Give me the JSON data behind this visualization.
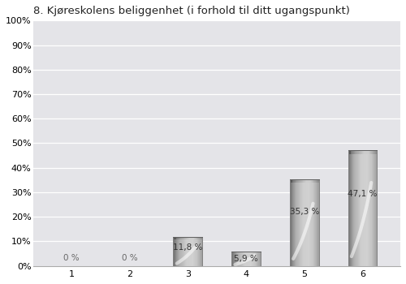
{
  "title": "8. Kjøreskolens beliggenhet (i forhold til ditt ugangspunkt)",
  "categories": [
    1,
    2,
    3,
    4,
    5,
    6
  ],
  "values": [
    0.0,
    0.0,
    11.8,
    5.9,
    35.3,
    47.1
  ],
  "labels": [
    "0 %",
    "0 %",
    "11,8 %",
    "5,9 %",
    "35,3 %",
    "47,1 %"
  ],
  "yticks": [
    0,
    10,
    20,
    30,
    40,
    50,
    60,
    70,
    80,
    90,
    100
  ],
  "ytick_labels": [
    "0%",
    "10%",
    "20%",
    "30%",
    "40%",
    "50%",
    "60%",
    "70%",
    "80%",
    "90%",
    "100%"
  ],
  "bg_color": "#e4e4e8",
  "title_fontsize": 9.5,
  "label_fontsize": 7.5,
  "tick_fontsize": 8,
  "bar_width": 0.5,
  "xlim": [
    0.35,
    6.65
  ],
  "ylim": [
    0,
    100
  ]
}
